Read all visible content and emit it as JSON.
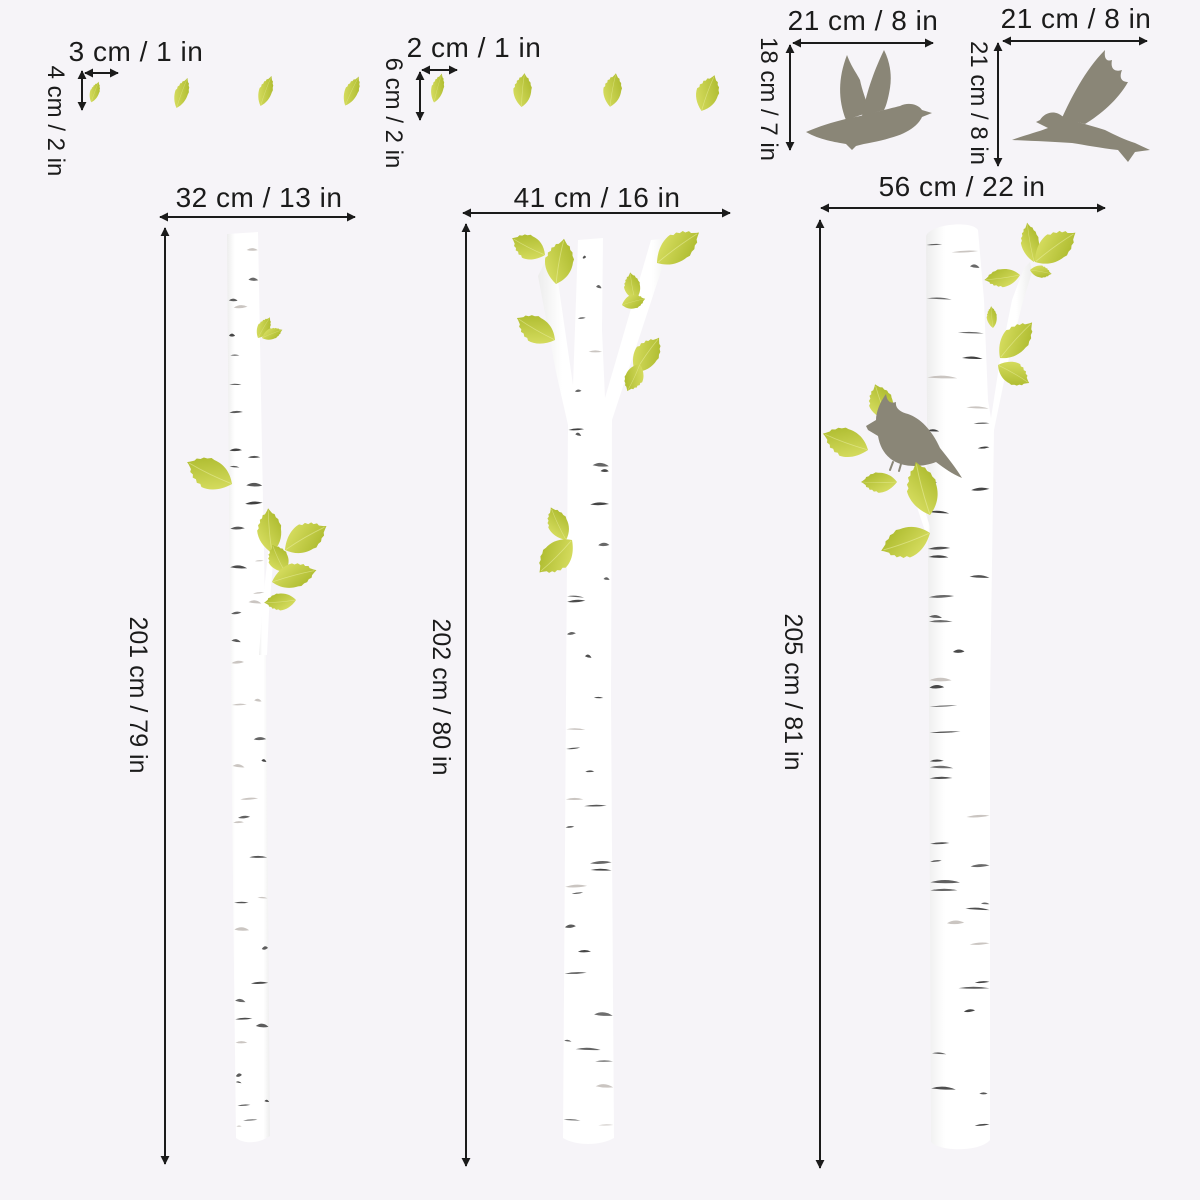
{
  "leaves_small": {
    "width_label": "3 cm / 1 in",
    "height_label": "4 cm / 2 in"
  },
  "leaves_large": {
    "width_label": "2 cm / 1 in",
    "height_label": "6 cm / 2 in"
  },
  "bird_right": {
    "width_label": "21 cm / 8 in",
    "height_label": "18 cm / 7 in"
  },
  "bird_left": {
    "width_label": "21 cm / 8 in",
    "height_label": "21 cm / 8 in"
  },
  "tree_1": {
    "width_label": "32 cm / 13 in",
    "height_label": "201 cm / 79 in"
  },
  "tree_2": {
    "width_label": "41 cm / 16 in",
    "height_label": "202 cm / 80 in"
  },
  "tree_3": {
    "width_label": "56 cm / 22 in",
    "height_label": "205 cm / 81 in"
  },
  "colors": {
    "background": "#f6f4f8",
    "ink": "#1b1b1b",
    "leaf_light": "#dfe46a",
    "leaf_dark": "#a6b526",
    "bird": "#8a8677",
    "bark": "#383838",
    "trunk": "#ffffff"
  }
}
